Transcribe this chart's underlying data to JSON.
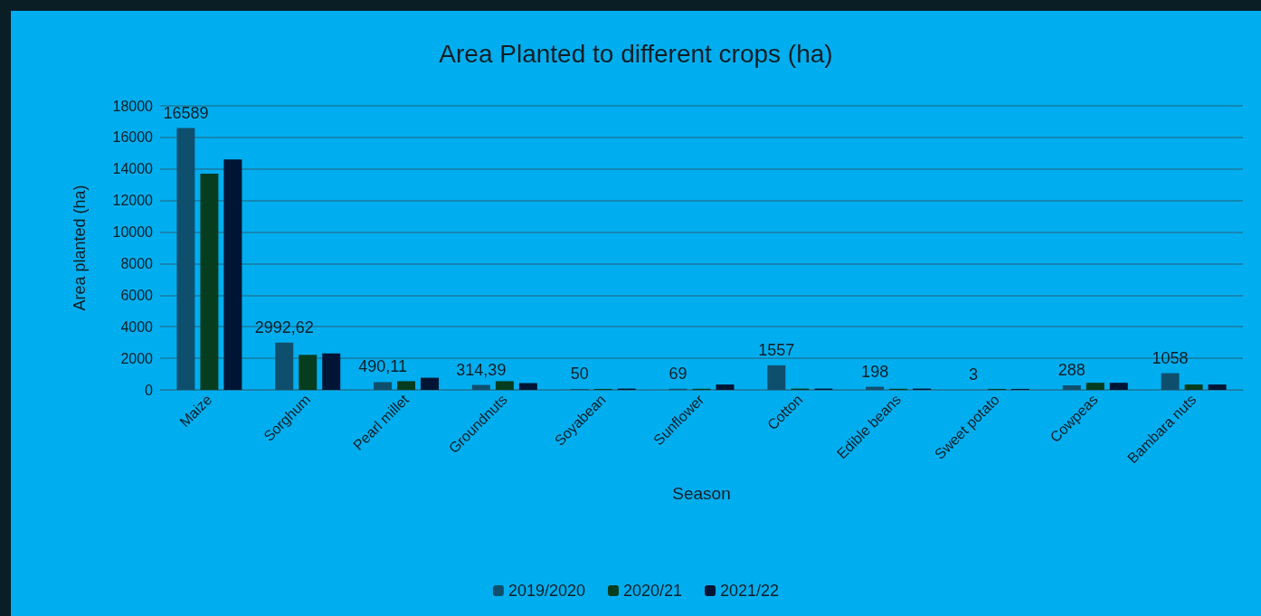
{
  "chart_data": {
    "type": "bar",
    "title": "Area Planted to different crops (ha)",
    "xlabel": "Season",
    "ylabel": "Area planted (ha)",
    "categories": [
      "Maize",
      "Sorghum",
      "Pearl millet",
      "Groundnuts",
      "Soyabean",
      "Sunflower",
      "Cotton",
      "Edible beans",
      "Sweet potato",
      "Cowpeas",
      "Bambara nuts"
    ],
    "series": [
      {
        "name": "2019/2020",
        "color": "#0f4f6e",
        "values": [
          16589,
          2992.62,
          490.11,
          314.39,
          50,
          69,
          1557,
          198,
          3,
          288,
          1058
        ],
        "value_labels": [
          "16589",
          "2992,62",
          "490,11",
          "314,39",
          "50",
          "69",
          "1557",
          "198",
          "3",
          "288",
          "1058"
        ]
      },
      {
        "name": "2020/21",
        "color": "#063d1e",
        "values": [
          13700,
          2220,
          550,
          550,
          60,
          70,
          80,
          70,
          60,
          450,
          340
        ]
      },
      {
        "name": "2021/22",
        "color": "#001535",
        "values": [
          14600,
          2310,
          770,
          430,
          80,
          340,
          80,
          80,
          60,
          450,
          340
        ]
      }
    ],
    "ylim": [
      0,
      18000
    ],
    "yticks": [
      0,
      2000,
      4000,
      6000,
      8000,
      10000,
      12000,
      14000,
      16000,
      18000
    ],
    "grid": "y",
    "legend": "bottom"
  }
}
